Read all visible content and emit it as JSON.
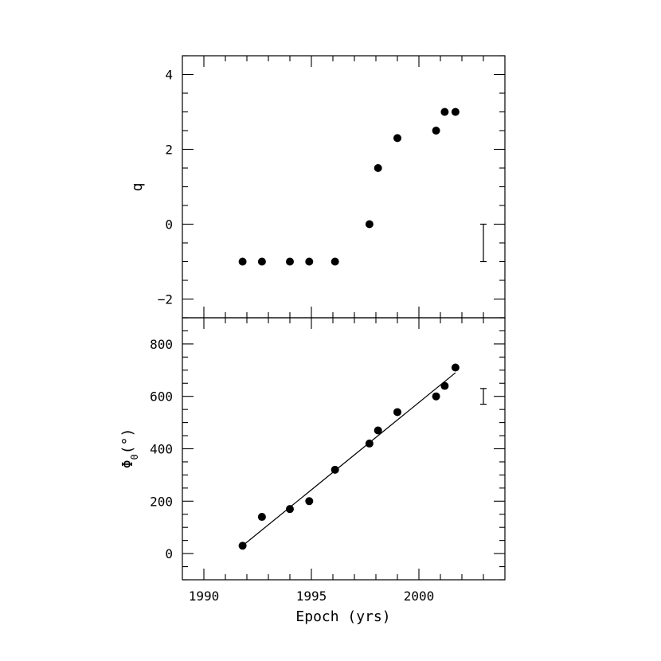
{
  "chart_data": [
    {
      "type": "scatter",
      "panel": "top",
      "xlabel": "",
      "ylabel": "q",
      "xlim": [
        1989,
        2004
      ],
      "ylim": [
        -2.5,
        4.5
      ],
      "yticks": [
        -2,
        0,
        2,
        4
      ],
      "ytick_labels": [
        "−2",
        "0",
        "2",
        "4"
      ],
      "series": [
        {
          "x": [
            1991.8,
            1992.7,
            1994.0,
            1994.9,
            1996.1,
            1997.7,
            1998.1,
            1999.0,
            2000.8,
            2001.2,
            2001.7
          ],
          "y": [
            -1,
            -1,
            -1,
            -1,
            -1,
            0,
            1.5,
            2.3,
            2.5,
            3.0,
            3.0
          ]
        }
      ],
      "error_bar": {
        "x": 2003.0,
        "y_low": -1,
        "y_high": 0
      }
    },
    {
      "type": "scatter",
      "panel": "bottom",
      "xlabel": "Epoch (yrs)",
      "ylabel_main": "Φ",
      "ylabel_sub": "0",
      "ylabel_tail": "(°)",
      "xlim": [
        1989,
        2004
      ],
      "ylim": [
        -100,
        900
      ],
      "xticks": [
        1990,
        1995,
        2000
      ],
      "xtick_labels": [
        "1990",
        "1995",
        "2000"
      ],
      "yticks": [
        0,
        200,
        400,
        600,
        800
      ],
      "ytick_labels": [
        "0",
        "200",
        "400",
        "600",
        "800"
      ],
      "series": [
        {
          "x": [
            1991.8,
            1992.7,
            1994.0,
            1994.9,
            1996.1,
            1997.7,
            1998.1,
            1999.0,
            2000.8,
            2001.2,
            2001.7
          ],
          "y": [
            30,
            140,
            170,
            200,
            320,
            420,
            470,
            540,
            600,
            640,
            710
          ]
        }
      ],
      "fit_line": {
        "x": [
          1991.8,
          2001.7
        ],
        "y": [
          30,
          690
        ]
      },
      "error_bar": {
        "x": 2003.0,
        "y_low": 570,
        "y_high": 630
      }
    }
  ]
}
